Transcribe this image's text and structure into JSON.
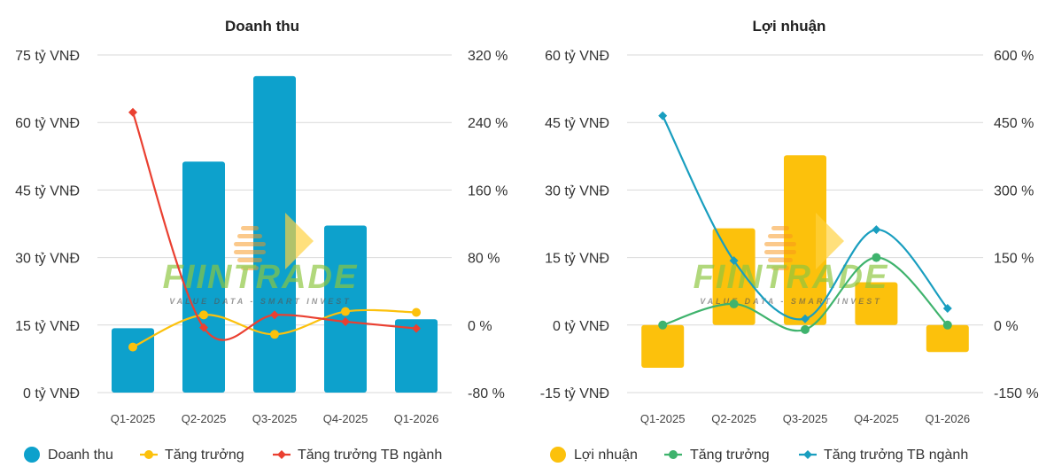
{
  "colors": {
    "revenue_bar": "#0da1cc",
    "growth_left": "#fcc10c",
    "industry_left": "#ea4031",
    "profit_bar": "#fcc10c",
    "growth_right": "#3fb36d",
    "industry_right": "#199ebf",
    "grid": "#d9d9d9",
    "watermark_green": "#8dc63f",
    "watermark_orange": "#f7941d",
    "watermark_yellow": "#ffd23f"
  },
  "watermark": {
    "brand": "FIINTRADE",
    "tagline": "VALUE DATA - SMART INVEST"
  },
  "chart_data": [
    {
      "type": "bar",
      "title": "Doanh thu",
      "categories": [
        "Q1-2025",
        "Q2-2025",
        "Q3-2025",
        "Q4-2025",
        "Q1-2026"
      ],
      "ylim": [
        0,
        75
      ],
      "yticks": [
        0,
        15,
        30,
        45,
        60,
        75
      ],
      "ytick_labels": [
        "0 tỷ VNĐ",
        "15 tỷ VNĐ",
        "30 tỷ VNĐ",
        "45 tỷ VNĐ",
        "60 tỷ VNĐ",
        "75 tỷ VNĐ"
      ],
      "y2lim": [
        -80,
        320
      ],
      "y2ticks": [
        -80,
        0,
        80,
        160,
        240,
        320
      ],
      "y2tick_labels": [
        "-80 %",
        "0 %",
        "80 %",
        "160 %",
        "240 %",
        "320 %"
      ],
      "grid": true,
      "legend_position": "bottom",
      "series": [
        {
          "name": "Doanh thu",
          "type": "bar",
          "axis": "left",
          "color": "#0da1cc",
          "values": [
            14.3,
            51.3,
            70.3,
            37.1,
            16.3
          ]
        },
        {
          "name": "Tăng trưởng",
          "type": "line",
          "axis": "right",
          "color": "#fcc10c",
          "marker": "circle",
          "values": [
            -26,
            12,
            -11,
            16,
            15
          ]
        },
        {
          "name": "Tăng trưởng TB ngành",
          "type": "line",
          "axis": "right",
          "color": "#ea4031",
          "marker": "diamond",
          "values": [
            252,
            -3,
            12,
            4,
            -4
          ]
        }
      ]
    },
    {
      "type": "bar",
      "title": "Lợi nhuận",
      "categories": [
        "Q1-2025",
        "Q2-2025",
        "Q3-2025",
        "Q4-2025",
        "Q1-2026"
      ],
      "ylim": [
        -15,
        60
      ],
      "yticks": [
        -15,
        0,
        15,
        30,
        45,
        60
      ],
      "ytick_labels": [
        "-15 tỷ VNĐ",
        "0 tỷ VNĐ",
        "15 tỷ VNĐ",
        "30 tỷ VNĐ",
        "45 tỷ VNĐ",
        "60 tỷ VNĐ"
      ],
      "y2lim": [
        -150,
        600
      ],
      "y2ticks": [
        -150,
        0,
        150,
        300,
        450,
        600
      ],
      "y2tick_labels": [
        "-150 %",
        "0 %",
        "150 %",
        "300 %",
        "450 %",
        "600 %"
      ],
      "grid": true,
      "legend_position": "bottom",
      "series": [
        {
          "name": "Lợi nhuận",
          "type": "bar",
          "axis": "left",
          "color": "#fcc10c",
          "values": [
            -9.5,
            21.5,
            37.7,
            9.5,
            -6.0
          ]
        },
        {
          "name": "Tăng trưởng",
          "type": "line",
          "axis": "right",
          "color": "#3fb36d",
          "marker": "circle",
          "values": [
            0,
            47,
            -10,
            150,
            0
          ]
        },
        {
          "name": "Tăng trưởng TB ngành",
          "type": "line",
          "axis": "right",
          "color": "#199ebf",
          "marker": "diamond",
          "values": [
            465,
            143,
            14,
            212,
            37
          ]
        }
      ]
    }
  ]
}
